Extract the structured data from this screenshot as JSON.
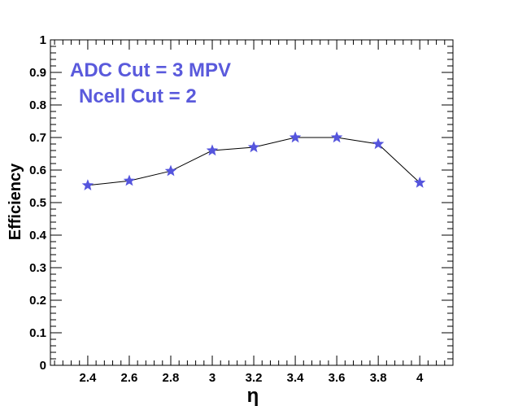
{
  "chart_data": {
    "type": "line",
    "xlabel": "η",
    "ylabel": "Efficiency",
    "xlim": [
      2.22,
      4.16
    ],
    "ylim": [
      0,
      1
    ],
    "x_ticks": [
      "2.4",
      "2.6",
      "2.8",
      "3",
      "3.2",
      "3.4",
      "3.6",
      "3.8",
      "4"
    ],
    "y_ticks": [
      "0",
      "0.1",
      "0.2",
      "0.3",
      "0.4",
      "0.5",
      "0.6",
      "0.7",
      "0.8",
      "0.9",
      "1"
    ],
    "grid": false,
    "annotations": [
      "ADC Cut = 3 MPV",
      "Ncell Cut = 2"
    ],
    "series": [
      {
        "x": [
          2.4,
          2.6,
          2.8,
          3.0,
          3.2,
          3.4,
          3.6,
          3.8,
          4.0
        ],
        "y": [
          0.553,
          0.567,
          0.597,
          0.66,
          0.67,
          0.7,
          0.7,
          0.68,
          0.561
        ],
        "marker": "star",
        "color": "#5555dd"
      }
    ],
    "colors": {
      "marker": "#5555dd",
      "annotation": "#5a5adc",
      "line": "#000000"
    }
  }
}
